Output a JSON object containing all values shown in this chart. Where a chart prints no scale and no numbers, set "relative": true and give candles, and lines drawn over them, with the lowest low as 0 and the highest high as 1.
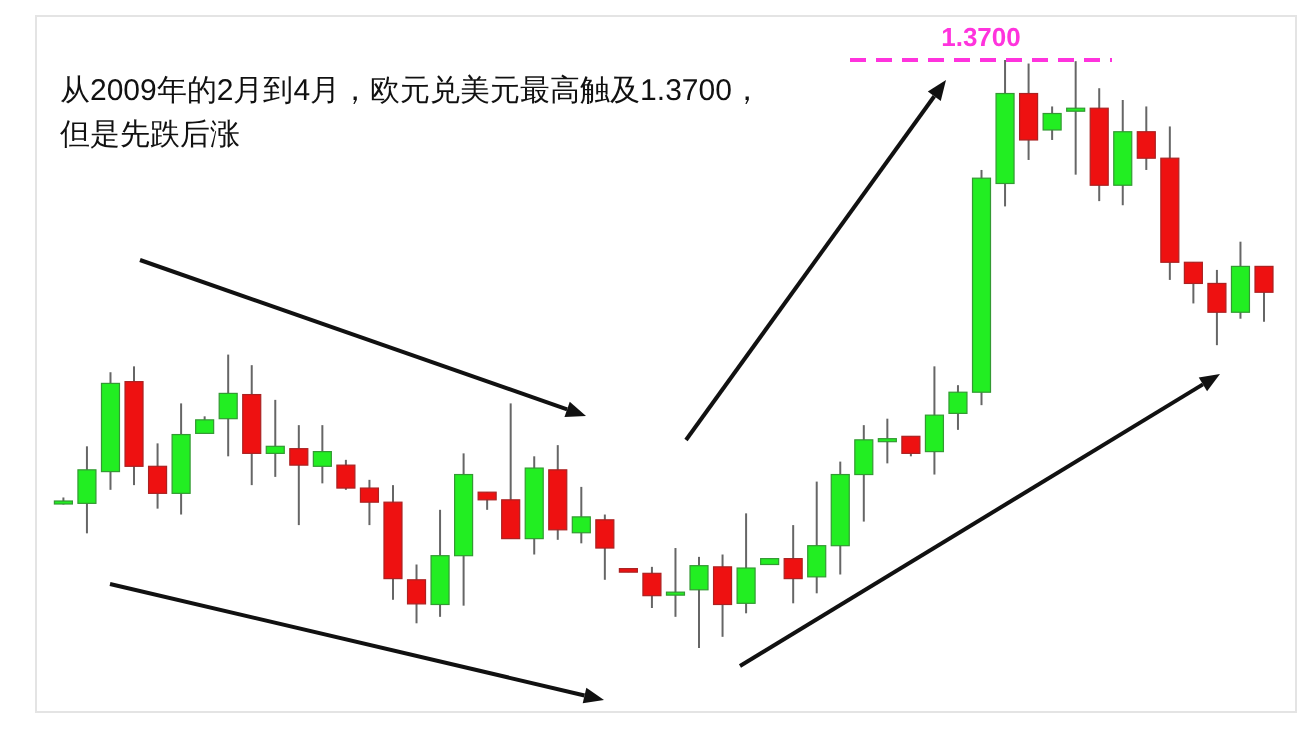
{
  "chart_data": {
    "type": "candlestick",
    "title": "从2009年的2月到4月，欧元兑美元最高触及1.3700，但是先跌后涨",
    "annotations": [
      "1.3700"
    ],
    "relative": true,
    "categories": [
      null,
      null,
      null,
      null,
      null,
      null,
      null,
      null,
      null,
      null,
      null,
      null,
      null,
      null,
      null,
      null,
      null,
      null,
      null,
      null,
      null,
      null,
      null,
      null,
      null,
      null,
      null,
      null,
      null,
      null,
      null,
      null,
      null,
      null,
      null,
      null,
      null,
      null,
      null,
      null,
      null,
      null,
      null,
      null,
      null,
      null,
      null,
      null,
      null,
      null,
      null,
      null
    ],
    "ohlc": [
      [
        0.25,
        0.256,
        0.244,
        0.25
      ],
      [
        0.246,
        0.343,
        0.195,
        0.303
      ],
      [
        0.3,
        0.469,
        0.269,
        0.45
      ],
      [
        0.453,
        0.479,
        0.277,
        0.309
      ],
      [
        0.309,
        0.348,
        0.237,
        0.263
      ],
      [
        0.263,
        0.416,
        0.227,
        0.363
      ],
      [
        0.365,
        0.394,
        0.365,
        0.388
      ],
      [
        0.39,
        0.499,
        0.326,
        0.433
      ],
      [
        0.431,
        0.481,
        0.277,
        0.331
      ],
      [
        0.331,
        0.422,
        0.291,
        0.343
      ],
      [
        0.339,
        0.379,
        0.209,
        0.311
      ],
      [
        0.309,
        0.379,
        0.28,
        0.334
      ],
      [
        0.311,
        0.32,
        0.269,
        0.272
      ],
      [
        0.272,
        0.286,
        0.209,
        0.248
      ],
      [
        0.248,
        0.277,
        0.082,
        0.118
      ],
      [
        0.116,
        0.142,
        0.042,
        0.075
      ],
      [
        0.074,
        0.235,
        0.053,
        0.157
      ],
      [
        0.157,
        0.331,
        0.072,
        0.295
      ],
      [
        0.265,
        0.265,
        0.235,
        0.252
      ],
      [
        0.252,
        0.416,
        0.186,
        0.186
      ],
      [
        0.186,
        0.326,
        0.159,
        0.306
      ],
      [
        0.303,
        0.345,
        0.184,
        0.201
      ],
      [
        0.196,
        0.274,
        0.178,
        0.223
      ],
      [
        0.218,
        0.227,
        0.116,
        0.17
      ],
      [
        0.135,
        0.135,
        0.129,
        0.129
      ],
      [
        0.127,
        0.138,
        0.068,
        0.089
      ],
      [
        0.091,
        0.17,
        0.053,
        0.095
      ],
      [
        0.099,
        0.155,
        0,
        0.14
      ],
      [
        0.138,
        0.159,
        0.019,
        0.074
      ],
      [
        0.076,
        0.229,
        0.059,
        0.136
      ],
      [
        0.142,
        0.152,
        0.142,
        0.152
      ],
      [
        0.152,
        0.209,
        0.076,
        0.118
      ],
      [
        0.121,
        0.283,
        0.093,
        0.174
      ],
      [
        0.174,
        0.317,
        0.125,
        0.295
      ],
      [
        0.295,
        0.379,
        0.215,
        0.354
      ],
      [
        0.355,
        0.39,
        0.314,
        0.356
      ],
      [
        0.36,
        0.36,
        0.326,
        0.331
      ],
      [
        0.334,
        0.479,
        0.295,
        0.396
      ],
      [
        0.399,
        0.447,
        0.371,
        0.435
      ],
      [
        0.435,
        0.813,
        0.413,
        0.799
      ],
      [
        0.79,
        1,
        0.751,
        0.943
      ],
      [
        0.943,
        0.994,
        0.83,
        0.864
      ],
      [
        0.881,
        0.921,
        0.864,
        0.909
      ],
      [
        0.916,
        0.998,
        0.805,
        0.918
      ],
      [
        0.918,
        0.952,
        0.76,
        0.787
      ],
      [
        0.787,
        0.932,
        0.753,
        0.878
      ],
      [
        0.878,
        0.921,
        0.813,
        0.833
      ],
      [
        0.833,
        0.887,
        0.626,
        0.656
      ],
      [
        0.656,
        0.656,
        0.586,
        0.62
      ],
      [
        0.62,
        0.643,
        0.515,
        0.571
      ],
      [
        0.571,
        0.691,
        0.56,
        0.649
      ],
      [
        0.649,
        0.649,
        0.555,
        0.605
      ]
    ],
    "ref_lines": [
      {
        "axis": "y",
        "value": 1,
        "color": "#ff33dd",
        "line_style": "dashed"
      }
    ]
  }
}
